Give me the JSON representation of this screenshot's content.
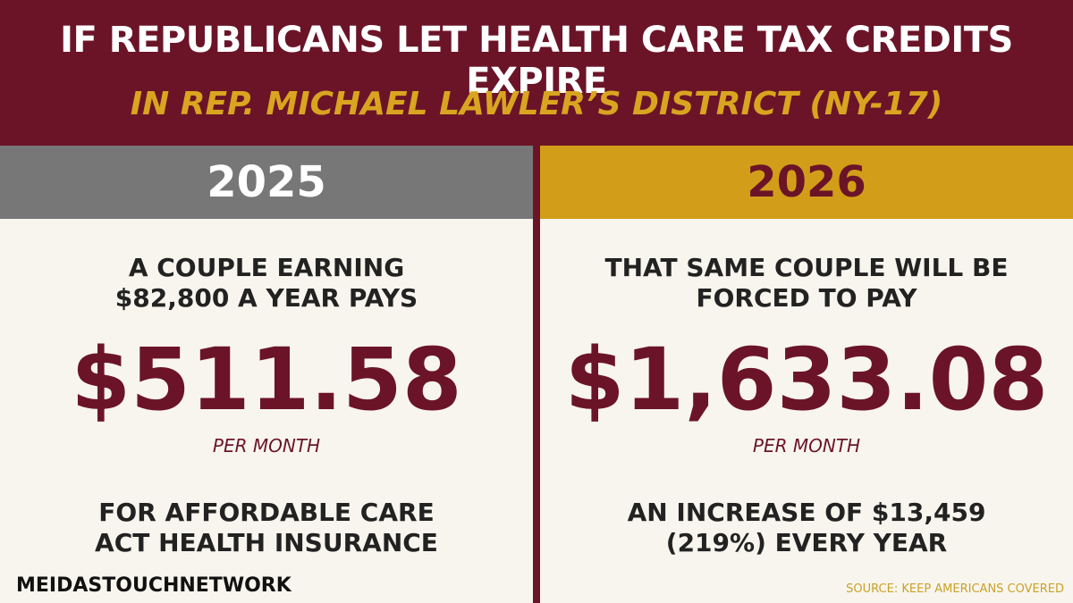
{
  "header": {
    "title": "IF REPUBLICANS LET HEALTH CARE TAX CREDITS EXPIRE",
    "subtitle": "IN REP. MICHAEL LAWLER’S DISTRICT (NY-17)"
  },
  "columns": [
    {
      "year": "2025",
      "intro": [
        "A COUPLE EARNING",
        "$82,800 A YEAR PAYS"
      ],
      "amount": "$511.58",
      "period": "PER MONTH",
      "note": [
        "FOR AFFORDABLE CARE",
        "ACT HEALTH INSURANCE"
      ]
    },
    {
      "year": "2026",
      "intro": [
        "THAT SAME COUPLE WILL BE",
        "FORCED TO PAY"
      ],
      "amount": "$1,633.08",
      "period": "PER MONTH",
      "note": [
        "AN INCREASE OF $13,459",
        "(219%) EVERY YEAR"
      ]
    }
  ],
  "footer": {
    "brand": "MEIDASTOUCHNETWORK",
    "source": "SOURCE: KEEP AMERICANS COVERED"
  }
}
